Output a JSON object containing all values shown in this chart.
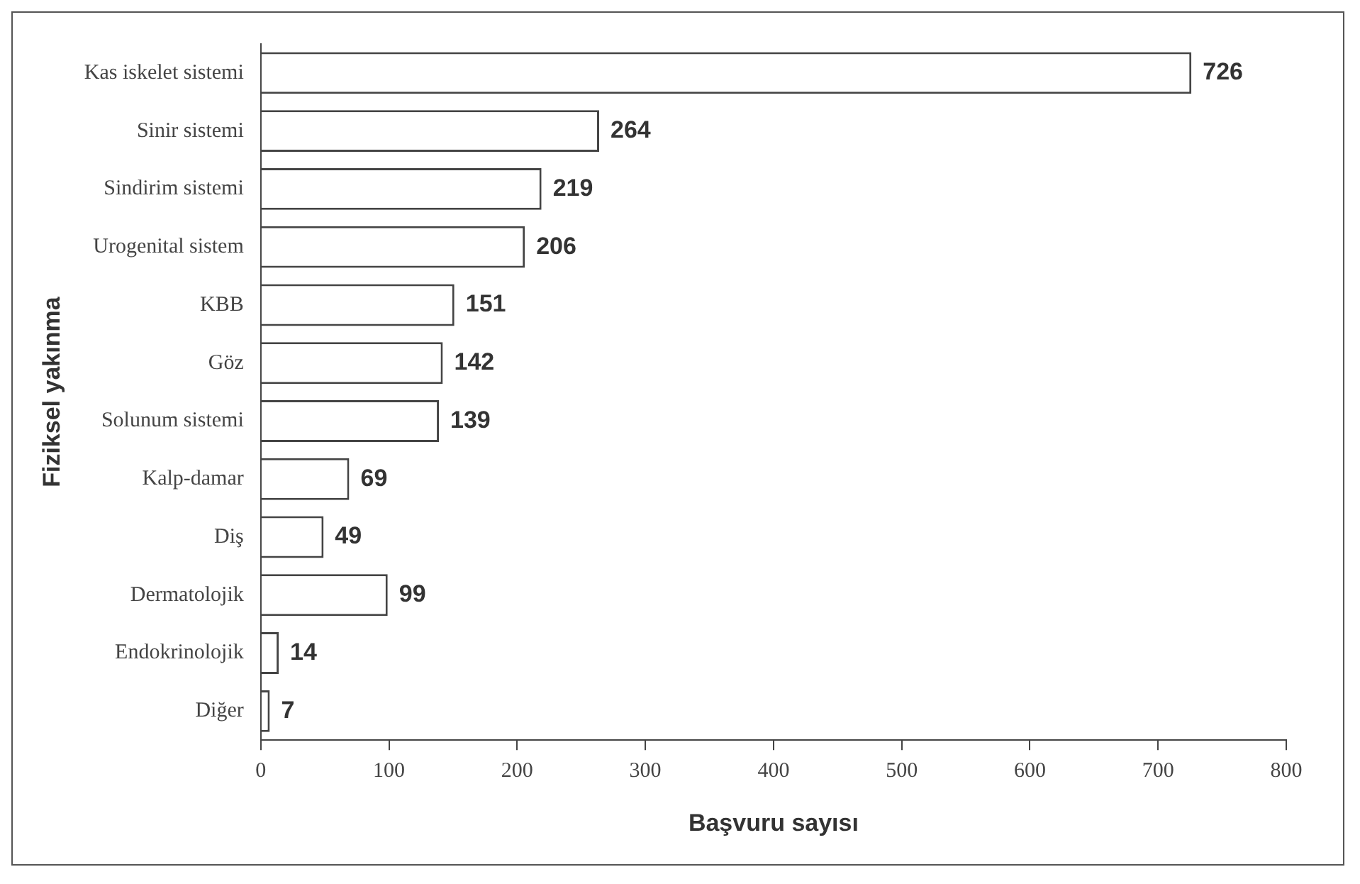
{
  "chart_data": {
    "type": "bar",
    "orientation": "horizontal",
    "xlabel": "Başvuru sayısı",
    "ylabel": "Fiziksel yakınma",
    "categories": [
      "Kas iskelet sistemi",
      "Sinir sistemi",
      "Sindirim sistemi",
      "Urogenital sistem",
      "KBB",
      "Göz",
      "Solunum sistemi",
      "Kalp-damar",
      "Diş",
      "Dermatolojik",
      "Endokrinolojik",
      "Diğer"
    ],
    "values": [
      726,
      264,
      219,
      206,
      151,
      142,
      139,
      69,
      49,
      99,
      14,
      7
    ],
    "color": "#ffffff",
    "xlim": [
      0,
      800
    ],
    "xticks": [
      0,
      100,
      200,
      300,
      400,
      500,
      600,
      700,
      800
    ],
    "data_labels": true,
    "grid": false,
    "legend": false
  }
}
